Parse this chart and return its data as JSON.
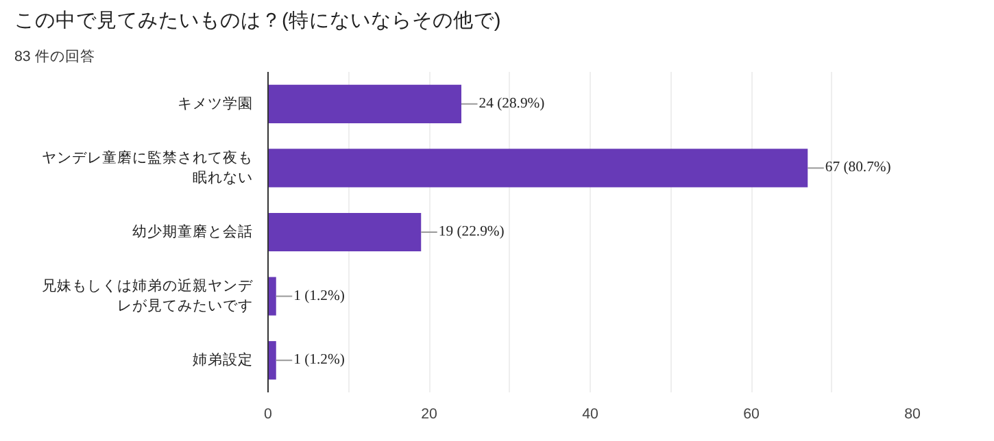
{
  "chart_data": {
    "type": "bar",
    "orientation": "horizontal",
    "title": "この中で見てみたいものは？(特にないならその他で)",
    "subtitle": "83 件の回答",
    "categories": [
      "キメツ学園",
      "ヤンデレ童磨に監禁されて夜も眠れない",
      "幼少期童磨と会話",
      "兄妹もしくは姉弟の近親ヤンデレが見てみたいです",
      "姉弟設定"
    ],
    "values": [
      24,
      67,
      19,
      1,
      1
    ],
    "color": "#673ab7",
    "value_labels": [
      "24 (28.9%)",
      "67 (80.7%)",
      "19 (22.9%)",
      "1 (1.2%)",
      "1 (1.2%)"
    ],
    "xlim": [
      0,
      80
    ],
    "xticks": [
      0,
      {
        "value": 10,
        "label": null
      },
      20,
      {
        "value": 30,
        "label": null
      },
      40,
      {
        "value": 50,
        "label": null
      },
      60,
      {
        "value": 70,
        "label": null
      },
      80
    ],
    "grid": "x"
  }
}
